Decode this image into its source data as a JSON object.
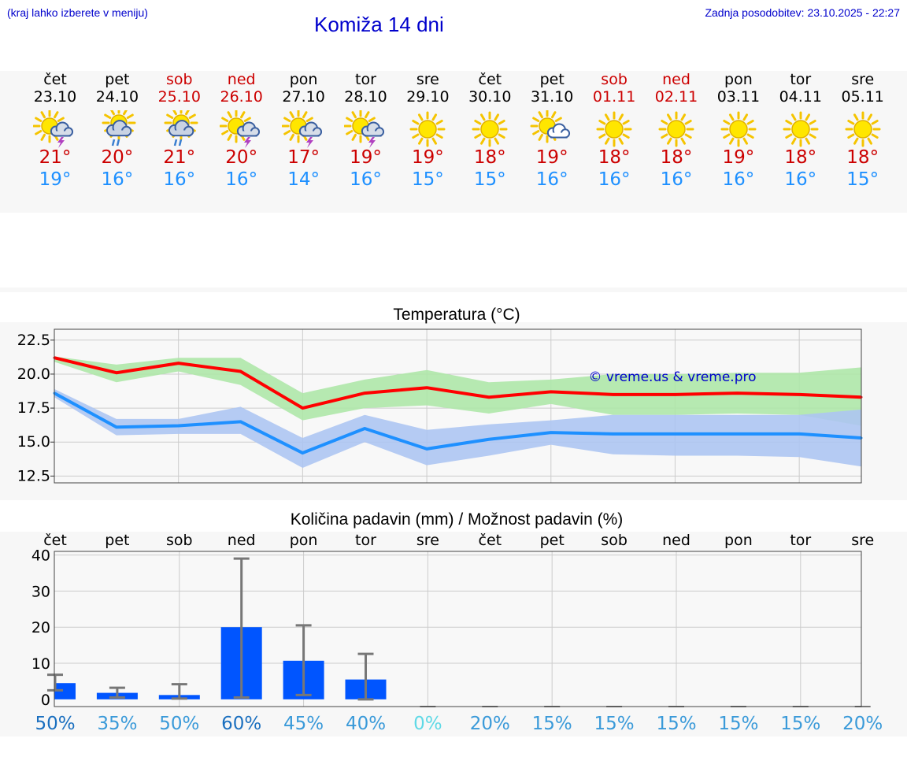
{
  "header": {
    "menu_hint": "(kraj lahko izberete v meniju)",
    "title": "Komiža 14 dni",
    "updated": "Zadnja posodobitev: 23.10.2025 - 22:27"
  },
  "colors": {
    "title_blue": "#0000cc",
    "weekend_red": "#cc0000",
    "tmax_red": "#cc0000",
    "tmin_blue": "#1e90ff",
    "max_line": "#ff0000",
    "min_line": "#1e90ff",
    "max_band": "#aee7a8",
    "min_band": "#adc5f2",
    "precip_bar": "#0055ff"
  },
  "forecast": [
    {
      "dow": "čet",
      "date": "23.10",
      "weekend": false,
      "icon": "sun-cloud-lightning-icon",
      "tmax": "21°",
      "tmin": "19°"
    },
    {
      "dow": "pet",
      "date": "24.10",
      "weekend": false,
      "icon": "sun-cloud-rain-icon",
      "tmax": "20°",
      "tmin": "16°"
    },
    {
      "dow": "sob",
      "date": "25.10",
      "weekend": true,
      "icon": "sun-cloud-rain-icon",
      "tmax": "21°",
      "tmin": "16°"
    },
    {
      "dow": "ned",
      "date": "26.10",
      "weekend": true,
      "icon": "sun-cloud-lightning-icon",
      "tmax": "20°",
      "tmin": "16°"
    },
    {
      "dow": "pon",
      "date": "27.10",
      "weekend": false,
      "icon": "sun-cloud-lightning-icon",
      "tmax": "17°",
      "tmin": "14°"
    },
    {
      "dow": "tor",
      "date": "28.10",
      "weekend": false,
      "icon": "sun-cloud-lightning-icon",
      "tmax": "19°",
      "tmin": "16°"
    },
    {
      "dow": "sre",
      "date": "29.10",
      "weekend": false,
      "icon": "sun-icon",
      "tmax": "19°",
      "tmin": "15°"
    },
    {
      "dow": "čet",
      "date": "30.10",
      "weekend": false,
      "icon": "sun-icon",
      "tmax": "18°",
      "tmin": "15°"
    },
    {
      "dow": "pet",
      "date": "31.10",
      "weekend": false,
      "icon": "sun-cloud-icon",
      "tmax": "19°",
      "tmin": "16°"
    },
    {
      "dow": "sob",
      "date": "01.11",
      "weekend": true,
      "icon": "sun-icon",
      "tmax": "18°",
      "tmin": "16°"
    },
    {
      "dow": "ned",
      "date": "02.11",
      "weekend": true,
      "icon": "sun-icon",
      "tmax": "18°",
      "tmin": "16°"
    },
    {
      "dow": "pon",
      "date": "03.11",
      "weekend": false,
      "icon": "sun-icon",
      "tmax": "19°",
      "tmin": "16°"
    },
    {
      "dow": "tor",
      "date": "04.11",
      "weekend": false,
      "icon": "sun-icon",
      "tmax": "18°",
      "tmin": "16°"
    },
    {
      "dow": "sre",
      "date": "05.11",
      "weekend": false,
      "icon": "sun-icon",
      "tmax": "18°",
      "tmin": "15°"
    }
  ],
  "chart_data": [
    {
      "type": "line",
      "title": "Temperatura (°C)",
      "watermark": "© vreme.us & vreme.pro",
      "xlabel": "",
      "ylabel": "",
      "ylim": [
        12,
        23.3
      ],
      "yticks": [
        "22.5",
        "20.0",
        "17.5",
        "15.0",
        "12.5"
      ],
      "ytick_values": [
        22.5,
        20.0,
        17.5,
        15.0,
        12.5
      ],
      "x": [
        0,
        1,
        2,
        3,
        4,
        5,
        6,
        7,
        8,
        9,
        10,
        11,
        12,
        13
      ],
      "series": [
        {
          "name": "max",
          "values": [
            21.2,
            20.1,
            20.8,
            20.2,
            17.5,
            18.6,
            19.0,
            18.3,
            18.7,
            18.5,
            18.5,
            18.6,
            18.5,
            18.3
          ],
          "band_low": [
            20.9,
            19.4,
            20.2,
            19.2,
            16.6,
            17.5,
            17.7,
            17.1,
            17.8,
            17.0,
            17.0,
            17.1,
            17.0,
            16.2
          ],
          "band_high": [
            21.3,
            20.7,
            21.2,
            21.2,
            18.6,
            19.6,
            20.3,
            19.4,
            19.6,
            20.0,
            20.0,
            20.1,
            20.1,
            20.5
          ]
        },
        {
          "name": "min",
          "values": [
            18.6,
            16.1,
            16.2,
            16.5,
            14.2,
            16.0,
            14.5,
            15.2,
            15.7,
            15.6,
            15.6,
            15.6,
            15.6,
            15.3
          ],
          "band_low": [
            18.3,
            15.5,
            15.6,
            15.6,
            13.1,
            15.0,
            13.3,
            14.0,
            14.8,
            14.1,
            14.0,
            14.0,
            13.9,
            13.2
          ],
          "band_high": [
            18.9,
            16.7,
            16.7,
            17.6,
            15.3,
            17.0,
            15.9,
            16.3,
            16.6,
            17.0,
            17.0,
            17.0,
            17.0,
            17.4
          ]
        }
      ]
    },
    {
      "type": "bar",
      "title": "Količina padavin (mm) / Možnost padavin (%)",
      "categories": [
        "čet",
        "pet",
        "sob",
        "ned",
        "pon",
        "tor",
        "sre",
        "čet",
        "pet",
        "sob",
        "ned",
        "pon",
        "tor",
        "sre"
      ],
      "values": [
        4.5,
        1.8,
        1.2,
        20.0,
        10.7,
        5.5,
        0,
        0,
        0,
        0,
        0,
        0,
        0,
        0
      ],
      "err_low": [
        2.5,
        0.5,
        0.2,
        0.5,
        1.2,
        0,
        0,
        0,
        0,
        0,
        0,
        0,
        0,
        0
      ],
      "err_high": [
        6.8,
        3.2,
        4.2,
        39.0,
        20.5,
        12.6,
        0,
        0,
        0,
        0,
        0,
        0,
        0,
        0
      ],
      "probability": [
        "50%",
        "35%",
        "50%",
        "60%",
        "45%",
        "40%",
        "0%",
        "20%",
        "15%",
        "15%",
        "15%",
        "15%",
        "15%",
        "20%"
      ],
      "probability_colors": [
        "#1a6fbf",
        "#3a9ad9",
        "#3a9ad9",
        "#1a6fbf",
        "#3a9ad9",
        "#3a9ad9",
        "#5fd9e6",
        "#3a9ad9",
        "#3a9ad9",
        "#3a9ad9",
        "#3a9ad9",
        "#3a9ad9",
        "#3a9ad9",
        "#3a9ad9"
      ],
      "ylim": [
        -2,
        41
      ],
      "yticks": [
        "40",
        "30",
        "20",
        "10",
        "0"
      ],
      "ytick_values": [
        40,
        30,
        20,
        10,
        0
      ],
      "xlabel": "",
      "ylabel": ""
    }
  ]
}
